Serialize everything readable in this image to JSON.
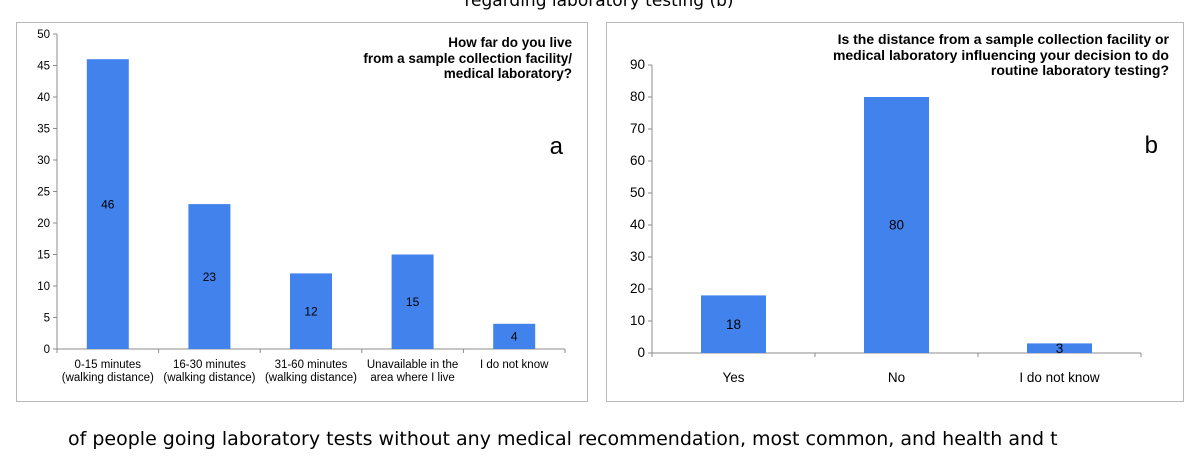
{
  "page": {
    "top_caption": "regarding laboratory testing (b)",
    "bottom_caption": "of people going laboratory tests without any medical recommendation, most common, and health and t"
  },
  "chart_data": [
    {
      "type": "bar",
      "panel_letter": "a",
      "title": "How far do you live from a sample collection facility/ medical laboratory?",
      "title_lines": [
        "How far do you live",
        "from a sample collection facility/",
        "medical laboratory?"
      ],
      "categories": [
        [
          "0-15 minutes",
          "(walking distance)"
        ],
        [
          "16-30 minutes",
          "(walking distance)"
        ],
        [
          "31-60 minutes",
          "(walking distance)"
        ],
        [
          "Unavailable in the",
          "area where I live"
        ],
        [
          "I do not know"
        ]
      ],
      "values": [
        46,
        23,
        12,
        15,
        4
      ],
      "data_labels": [
        "46",
        "23",
        "12",
        "15",
        "4"
      ],
      "ylim": [
        0,
        50
      ],
      "yticks": [
        0,
        5,
        10,
        15,
        20,
        25,
        30,
        35,
        40,
        45,
        50
      ],
      "grid": false,
      "legend": "none",
      "bar_color": "#4282ec"
    },
    {
      "type": "bar",
      "panel_letter": "b",
      "title": "Is the distance from a sample collection facility or medical laboratory influencing your decision to do routine laboratory testing?",
      "title_lines": [
        "Is the distance from a sample collection facility or",
        "medical laboratory influencing your decision to do",
        "routine laboratory testing?"
      ],
      "categories": [
        [
          "Yes"
        ],
        [
          "No"
        ],
        [
          "I do not know"
        ]
      ],
      "values": [
        18,
        80,
        3
      ],
      "data_labels": [
        "18",
        "80",
        "3"
      ],
      "ylim": [
        0,
        90
      ],
      "yticks": [
        0,
        10,
        20,
        30,
        40,
        50,
        60,
        70,
        80,
        90
      ],
      "grid": false,
      "legend": "none",
      "bar_color": "#4282ec"
    }
  ]
}
